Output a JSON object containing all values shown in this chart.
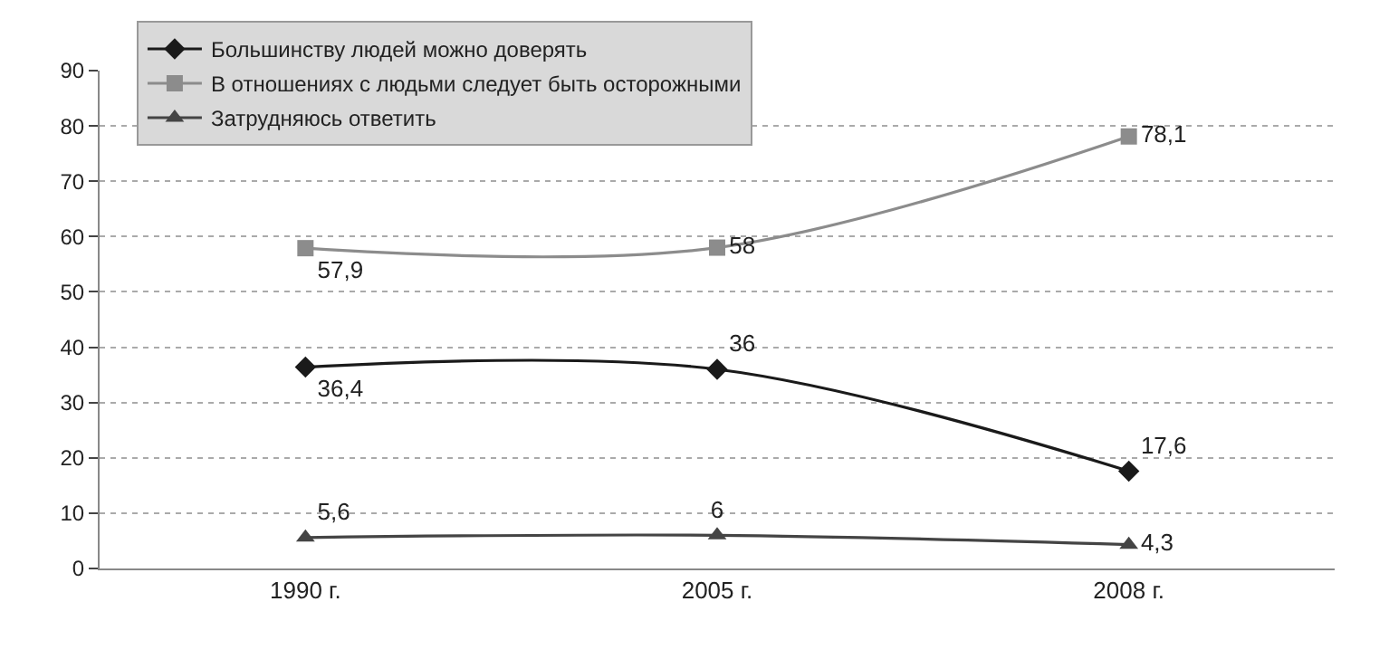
{
  "chart_data": {
    "type": "line",
    "categories": [
      "1990 г.",
      "2005 г.",
      "2008 г."
    ],
    "ylim": [
      0,
      90
    ],
    "yticks": [
      0,
      10,
      20,
      30,
      40,
      50,
      60,
      70,
      80,
      90
    ],
    "grid": "y",
    "legend": "top left",
    "series": [
      {
        "name": "Большинству людей можно доверять",
        "color": "#1a1a1a",
        "marker": "diamond",
        "values": [
          36.4,
          36,
          17.6
        ],
        "value_labels": [
          "36,4",
          "36",
          "17,6"
        ]
      },
      {
        "name": "В отношениях с людьми следует быть осторожными",
        "color": "#8c8c8c",
        "marker": "square",
        "values": [
          57.9,
          58,
          78.1
        ],
        "value_labels": [
          "57,9",
          "58",
          "78,1"
        ]
      },
      {
        "name": "Затрудняюсь ответить",
        "color": "#444444",
        "marker": "triangle",
        "values": [
          5.6,
          6,
          4.3
        ],
        "value_labels": [
          "5,6",
          "6",
          "4,3"
        ]
      }
    ]
  }
}
